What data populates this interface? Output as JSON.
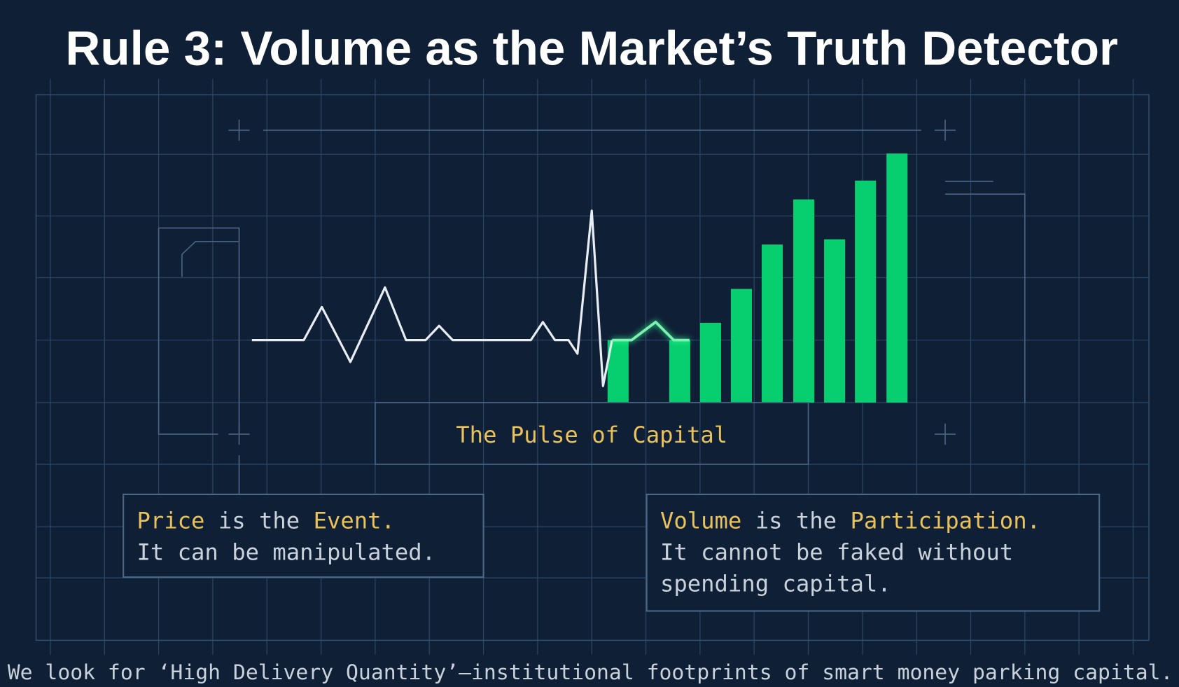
{
  "title": "Rule 3: Volume as the Market’s Truth Detector",
  "center_label": "The Pulse of Capital",
  "left_card": {
    "keyword_1": "Price",
    "connector": "is the",
    "keyword_2": "Event.",
    "body": "It can be manipulated."
  },
  "right_card": {
    "keyword_1": "Volume",
    "connector": "is the",
    "keyword_2": "Participation.",
    "body_1": "It cannot be faked without",
    "body_2": "spending capital."
  },
  "footer": "We look for ‘High Delivery Quantity’—institutional footprints of smart money parking capital."
}
